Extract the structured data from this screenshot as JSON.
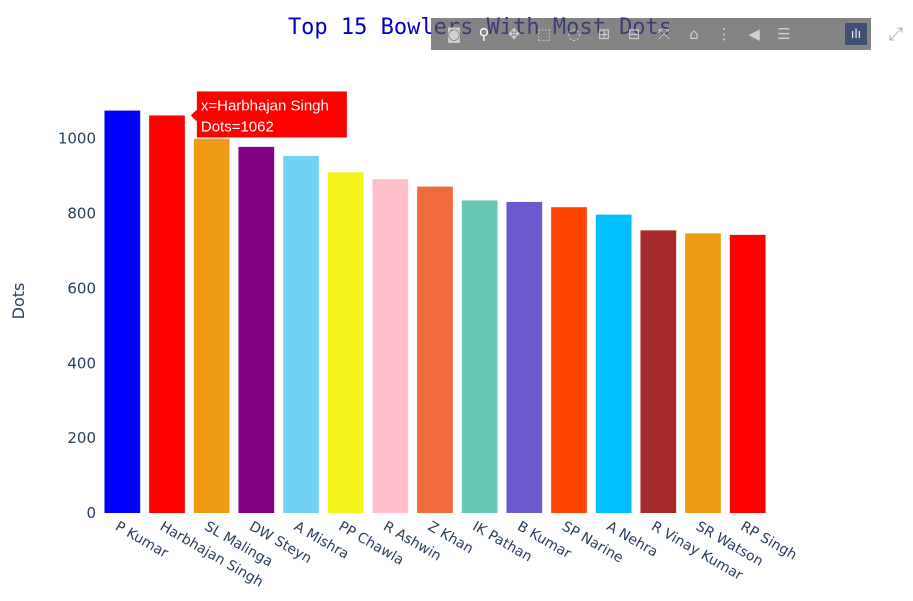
{
  "chart_data": {
    "type": "bar",
    "title": "Top 15 Bowlers With Most Dots",
    "xlabel": "",
    "ylabel": "Dots",
    "ylim": [
      0,
      1130
    ],
    "yticks": [
      0,
      200,
      400,
      600,
      800,
      1000
    ],
    "grid": false,
    "categories": [
      "P Kumar",
      "Harbhajan Singh",
      "SL Malinga",
      "DW Steyn",
      "A Mishra",
      "PP Chawla",
      "R Ashwin",
      "Z Khan",
      "IK Pathan",
      "B Kumar",
      "SP Narine",
      "A Nehra",
      "R Vinay Kumar",
      "SR Watson",
      "RP Singh"
    ],
    "values": [
      1075,
      1062,
      1000,
      978,
      954,
      910,
      892,
      872,
      835,
      831,
      817,
      797,
      755,
      747,
      743
    ],
    "colors": [
      "#0000ff",
      "#ff0000",
      "#ee9a15",
      "#800080",
      "#72d2f5",
      "#f5f51c",
      "#ffc0cb",
      "#ef6b3c",
      "#66c8b6",
      "#6a5acd",
      "#ff4500",
      "#00bfff",
      "#a52a2a",
      "#ee9a15",
      "#ff0000"
    ]
  },
  "tooltip": {
    "index": 1,
    "line1": "x=Harbhajan Singh",
    "line2": "Dots=1062",
    "color": "#ff0000"
  },
  "modebar": {
    "buttons": [
      {
        "icon": "camera-icon",
        "glyph": "◙",
        "active": false
      },
      {
        "icon": "zoom-icon",
        "glyph": "⚲",
        "active": true
      },
      {
        "icon": "pan-icon",
        "glyph": "✥",
        "active": false
      },
      {
        "icon": "box-select-icon",
        "glyph": "⬚",
        "active": false
      },
      {
        "icon": "lasso-select-icon",
        "glyph": "◌",
        "active": false
      },
      {
        "icon": "zoom-in-icon",
        "glyph": "⊞",
        "active": false
      },
      {
        "icon": "zoom-out-icon",
        "glyph": "⊟",
        "active": false
      },
      {
        "icon": "autoscale-icon",
        "glyph": "⤧",
        "active": false
      },
      {
        "icon": "home-icon",
        "glyph": "⌂",
        "active": false
      },
      {
        "icon": "spike-lines-icon",
        "glyph": "⋮",
        "active": false
      },
      {
        "icon": "hover-closest-icon",
        "glyph": "◀",
        "active": false
      },
      {
        "icon": "hover-compare-icon",
        "glyph": "☰",
        "active": false
      }
    ],
    "logo_icon": "plotly-logo-icon",
    "logo_glyph": "ılı"
  },
  "expand_icon": "expand-icon",
  "expand_glyph": "⤢"
}
